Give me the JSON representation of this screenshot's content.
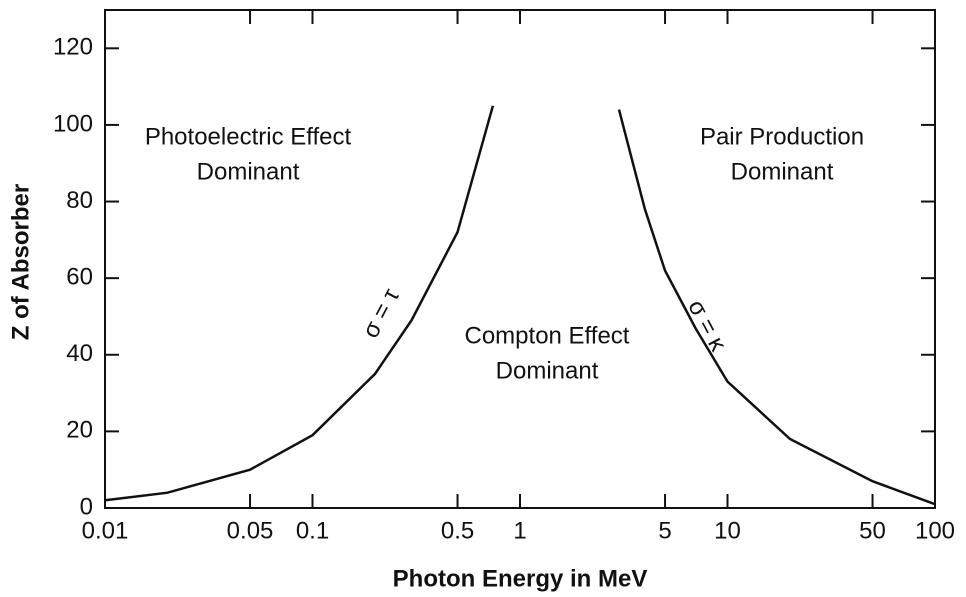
{
  "chart_data": {
    "type": "line",
    "xlabel": "Photon Energy in MeV",
    "ylabel": "Z of Absorber",
    "xscale": "log",
    "xlim": [
      0.01,
      100
    ],
    "xticks": [
      0.01,
      0.05,
      0.1,
      0.5,
      1,
      5,
      10,
      50,
      100
    ],
    "ylim": [
      0,
      130
    ],
    "yticks": [
      0,
      20,
      40,
      60,
      80,
      100,
      120
    ],
    "series": [
      {
        "name": "σ = τ",
        "color": "#111111",
        "x": [
          0.01,
          0.02,
          0.05,
          0.1,
          0.2,
          0.3,
          0.5,
          0.74
        ],
        "values": [
          2,
          4,
          10,
          19,
          35,
          49,
          72,
          105
        ]
      },
      {
        "name": "σ = κ",
        "color": "#111111",
        "x": [
          3,
          3.5,
          4,
          5,
          7,
          10,
          20,
          50,
          100
        ],
        "values": [
          104,
          90,
          78,
          62,
          47,
          33,
          18,
          7,
          1
        ]
      }
    ],
    "annotations": [
      [
        "Photoelectric Effect",
        "Dominant"
      ],
      [
        "Compton Effect",
        "Dominant"
      ],
      [
        "Pair Production",
        "Dominant"
      ]
    ]
  }
}
